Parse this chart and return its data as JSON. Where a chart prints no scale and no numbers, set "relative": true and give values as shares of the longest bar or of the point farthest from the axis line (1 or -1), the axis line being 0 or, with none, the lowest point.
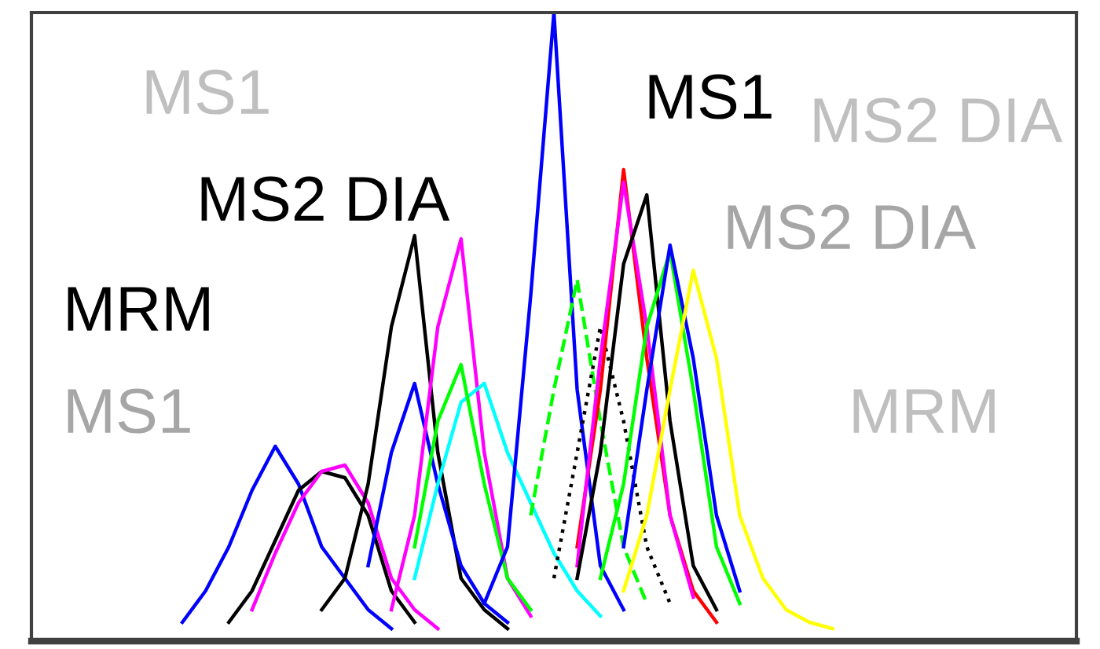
{
  "chart_data": {
    "type": "line",
    "relative": true,
    "marker": "none",
    "categories": [
      null,
      null,
      null,
      null,
      null,
      null,
      null,
      null,
      null,
      null,
      null,
      null,
      null,
      null,
      null,
      null,
      null,
      null,
      null,
      null,
      null,
      null,
      null,
      null,
      null,
      null,
      null,
      null,
      null,
      null,
      null,
      null,
      null,
      null,
      null,
      null,
      null,
      null,
      null,
      null,
      null,
      null,
      null,
      null,
      null
    ],
    "annotations": [
      "MS1",
      "MS2 DIA",
      "MRM",
      "MS1",
      "MS1",
      "MS2 DIA",
      "MS2 DIA",
      "MRM"
    ],
    "series": [
      {
        "color": "#0000ff",
        "values": [
          null,
          null,
          null,
          null,
          null,
          null,
          0.03,
          0.08,
          0.15,
          0.24,
          0.31,
          0.25,
          0.15,
          0.1,
          0.05,
          0.02,
          null,
          null,
          null,
          null,
          null,
          null,
          null,
          null,
          null,
          null,
          null,
          null,
          null,
          null,
          null,
          null,
          null,
          null,
          null,
          null,
          null,
          null,
          null,
          null,
          null,
          null,
          null,
          null,
          null
        ]
      },
      {
        "color": "#000000",
        "values": [
          null,
          null,
          null,
          null,
          null,
          null,
          null,
          null,
          0.03,
          0.08,
          0.16,
          0.24,
          0.27,
          0.26,
          0.2,
          0.08,
          0.03,
          null,
          null,
          null,
          null,
          null,
          null,
          null,
          null,
          null,
          null,
          null,
          null,
          null,
          null,
          null,
          null,
          null,
          null,
          null,
          null,
          null,
          null,
          null,
          null,
          null,
          null,
          null,
          null
        ]
      },
      {
        "color": "#ff00ff",
        "values": [
          null,
          null,
          null,
          null,
          null,
          null,
          null,
          null,
          null,
          0.05,
          0.14,
          0.22,
          0.27,
          0.28,
          0.22,
          0.1,
          0.05,
          0.02,
          null,
          null,
          null,
          null,
          null,
          null,
          null,
          null,
          null,
          null,
          null,
          null,
          null,
          null,
          null,
          null,
          null,
          null,
          null,
          null,
          null,
          null,
          null,
          null,
          null,
          null,
          null
        ]
      },
      {
        "color": "#000000",
        "values": [
          null,
          null,
          null,
          null,
          null,
          null,
          null,
          null,
          null,
          null,
          null,
          null,
          0.05,
          0.1,
          0.25,
          0.5,
          0.645,
          0.3,
          0.1,
          0.05,
          0.02,
          null,
          null,
          null,
          null,
          null,
          null,
          null,
          null,
          null,
          null,
          null,
          null,
          null,
          null,
          null,
          null,
          null,
          null,
          null,
          null,
          null,
          null,
          null,
          null
        ]
      },
      {
        "color": "#0000ff",
        "values": [
          null,
          null,
          null,
          null,
          null,
          null,
          null,
          null,
          null,
          null,
          null,
          null,
          null,
          null,
          0.12,
          0.3,
          0.41,
          0.25,
          0.12,
          0.06,
          0.03,
          null,
          null,
          null,
          null,
          null,
          null,
          null,
          null,
          null,
          null,
          null,
          null,
          null,
          null,
          null,
          null,
          null,
          null,
          null,
          null,
          null,
          null,
          null,
          null
        ]
      },
      {
        "color": "#ff00ff",
        "values": [
          null,
          null,
          null,
          null,
          null,
          null,
          null,
          null,
          null,
          null,
          null,
          null,
          null,
          null,
          null,
          0.05,
          0.2,
          0.5,
          0.64,
          0.3,
          0.1,
          0.04,
          null,
          null,
          null,
          null,
          null,
          null,
          null,
          null,
          null,
          null,
          null,
          null,
          null,
          null,
          null,
          null,
          null,
          null,
          null,
          null,
          null,
          null,
          null
        ]
      },
      {
        "color": "#00ffff",
        "values": [
          null,
          null,
          null,
          null,
          null,
          null,
          null,
          null,
          null,
          null,
          null,
          null,
          null,
          null,
          null,
          null,
          0.1,
          0.25,
          0.38,
          0.41,
          0.3,
          0.22,
          0.14,
          0.08,
          0.04,
          null,
          null,
          null,
          null,
          null,
          null,
          null,
          null,
          null,
          null,
          null,
          null,
          null,
          null,
          null,
          null,
          null,
          null,
          null,
          null
        ]
      },
      {
        "color": "#00ff00",
        "values": [
          null,
          null,
          null,
          null,
          null,
          null,
          null,
          null,
          null,
          null,
          null,
          null,
          null,
          null,
          null,
          null,
          0.15,
          0.35,
          0.44,
          0.25,
          0.1,
          0.05,
          null,
          null,
          null,
          null,
          null,
          null,
          null,
          null,
          null,
          null,
          null,
          null,
          null,
          null,
          null,
          null,
          null,
          null,
          null,
          null,
          null,
          null,
          null
        ]
      },
      {
        "color": "#0000ff",
        "values": [
          null,
          null,
          null,
          null,
          null,
          null,
          null,
          null,
          null,
          null,
          null,
          null,
          null,
          null,
          null,
          null,
          null,
          null,
          null,
          0.06,
          0.15,
          0.55,
          1.0,
          0.4,
          0.12,
          0.05,
          null,
          null,
          null,
          null,
          null,
          null,
          null,
          null,
          null,
          null,
          null,
          null,
          null,
          null,
          null,
          null,
          null,
          null,
          null
        ]
      },
      {
        "color": "#00ff00",
        "line_style": "dashed",
        "values": [
          null,
          null,
          null,
          null,
          null,
          null,
          null,
          null,
          null,
          null,
          null,
          null,
          null,
          null,
          null,
          null,
          null,
          null,
          null,
          null,
          null,
          0.2,
          0.4,
          0.575,
          0.35,
          0.15,
          0.06,
          null,
          null,
          null,
          null,
          null,
          null,
          null,
          null,
          null,
          null,
          null,
          null,
          null,
          null,
          null,
          null,
          null,
          null
        ]
      },
      {
        "color": "#000000",
        "line_style": "dotted",
        "values": [
          null,
          null,
          null,
          null,
          null,
          null,
          null,
          null,
          null,
          null,
          null,
          null,
          null,
          null,
          null,
          null,
          null,
          null,
          null,
          null,
          null,
          null,
          0.1,
          0.3,
          0.5,
          0.35,
          0.15,
          0.06,
          null,
          null,
          null,
          null,
          null,
          null,
          null,
          null,
          null,
          null,
          null,
          null,
          null,
          null,
          null,
          null,
          null
        ]
      },
      {
        "color": "#ff0000",
        "values": [
          null,
          null,
          null,
          null,
          null,
          null,
          null,
          null,
          null,
          null,
          null,
          null,
          null,
          null,
          null,
          null,
          null,
          null,
          null,
          null,
          null,
          null,
          null,
          0.15,
          0.4,
          0.75,
          0.45,
          0.2,
          0.08,
          0.03,
          null,
          null,
          null,
          null,
          null,
          null,
          null,
          null,
          null,
          null,
          null,
          null,
          null,
          null,
          null
        ]
      },
      {
        "color": "#ff00ff",
        "values": [
          null,
          null,
          null,
          null,
          null,
          null,
          null,
          null,
          null,
          null,
          null,
          null,
          null,
          null,
          null,
          null,
          null,
          null,
          null,
          null,
          null,
          null,
          null,
          0.12,
          0.45,
          0.73,
          0.5,
          0.2,
          0.07,
          null,
          null,
          null,
          null,
          null,
          null,
          null,
          null,
          null,
          null,
          null,
          null,
          null,
          null,
          null,
          null
        ]
      },
      {
        "color": "#000000",
        "values": [
          null,
          null,
          null,
          null,
          null,
          null,
          null,
          null,
          null,
          null,
          null,
          null,
          null,
          null,
          null,
          null,
          null,
          null,
          null,
          null,
          null,
          null,
          null,
          0.1,
          0.3,
          0.6,
          0.71,
          0.35,
          0.12,
          0.05,
          null,
          null,
          null,
          null,
          null,
          null,
          null,
          null,
          null,
          null,
          null,
          null,
          null,
          null,
          null
        ]
      },
      {
        "color": "#00ff00",
        "values": [
          null,
          null,
          null,
          null,
          null,
          null,
          null,
          null,
          null,
          null,
          null,
          null,
          null,
          null,
          null,
          null,
          null,
          null,
          null,
          null,
          null,
          null,
          null,
          null,
          0.1,
          0.25,
          0.5,
          0.62,
          0.4,
          0.15,
          0.06,
          null,
          null,
          null,
          null,
          null,
          null,
          null,
          null,
          null,
          null,
          null,
          null,
          null,
          null
        ]
      },
      {
        "color": "#0000ff",
        "values": [
          null,
          null,
          null,
          null,
          null,
          null,
          null,
          null,
          null,
          null,
          null,
          null,
          null,
          null,
          null,
          null,
          null,
          null,
          null,
          null,
          null,
          null,
          null,
          null,
          null,
          0.15,
          0.4,
          0.63,
          0.45,
          0.2,
          0.08,
          null,
          null,
          null,
          null,
          null,
          null,
          null,
          null,
          null,
          null,
          null,
          null,
          null,
          null
        ]
      },
      {
        "color": "#ffff00",
        "values": [
          null,
          null,
          null,
          null,
          null,
          null,
          null,
          null,
          null,
          null,
          null,
          null,
          null,
          null,
          null,
          null,
          null,
          null,
          null,
          null,
          null,
          null,
          null,
          null,
          null,
          0.08,
          0.2,
          0.4,
          0.59,
          0.45,
          0.2,
          0.1,
          0.05,
          0.03,
          0.02,
          null,
          null,
          null,
          null,
          null,
          null,
          null,
          null,
          null,
          null
        ]
      }
    ]
  }
}
